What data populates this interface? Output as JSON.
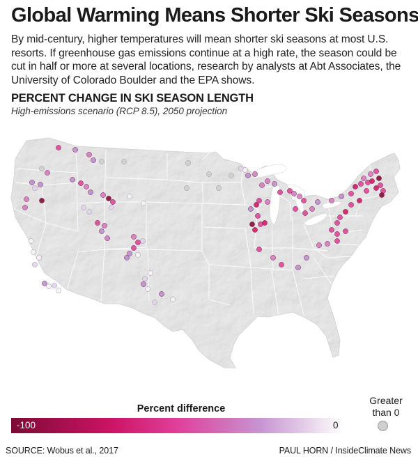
{
  "header": {
    "title": "Global Warming Means Shorter Ski Seasons",
    "intro": "By mid-century, higher temperatures will mean shorter ski seasons at most U.S. resorts. If greenhouse gas emissions continue at a high rate, the season could be cut in half or more at several locations, research by analysts at Abt Associates, the University of Colorado Boulder and the EPA shows.",
    "subhead": "PERCENT CHANGE IN SKI SEASON LENGTH",
    "subsubhead": "High-emissions scenario (RCP 8.5), 2050 projection"
  },
  "legend": {
    "title": "Percent difference",
    "min_label": "-100",
    "max_label": "0",
    "positive_label": "Greater than 0",
    "positive_color": "#cfcfcf",
    "scale_colors": [
      "#7d0a35",
      "#cc1464",
      "#e0409a",
      "#c795d2",
      "#efe3f0",
      "#ffffff"
    ]
  },
  "footer": {
    "source": "SOURCE: Wobus et al., 2017",
    "credit": "PAUL HORN / InsideClimate News"
  },
  "map": {
    "land_color": "#dcdcdc",
    "water_color": "#ffffff",
    "border_color": "#ffffff"
  }
}
